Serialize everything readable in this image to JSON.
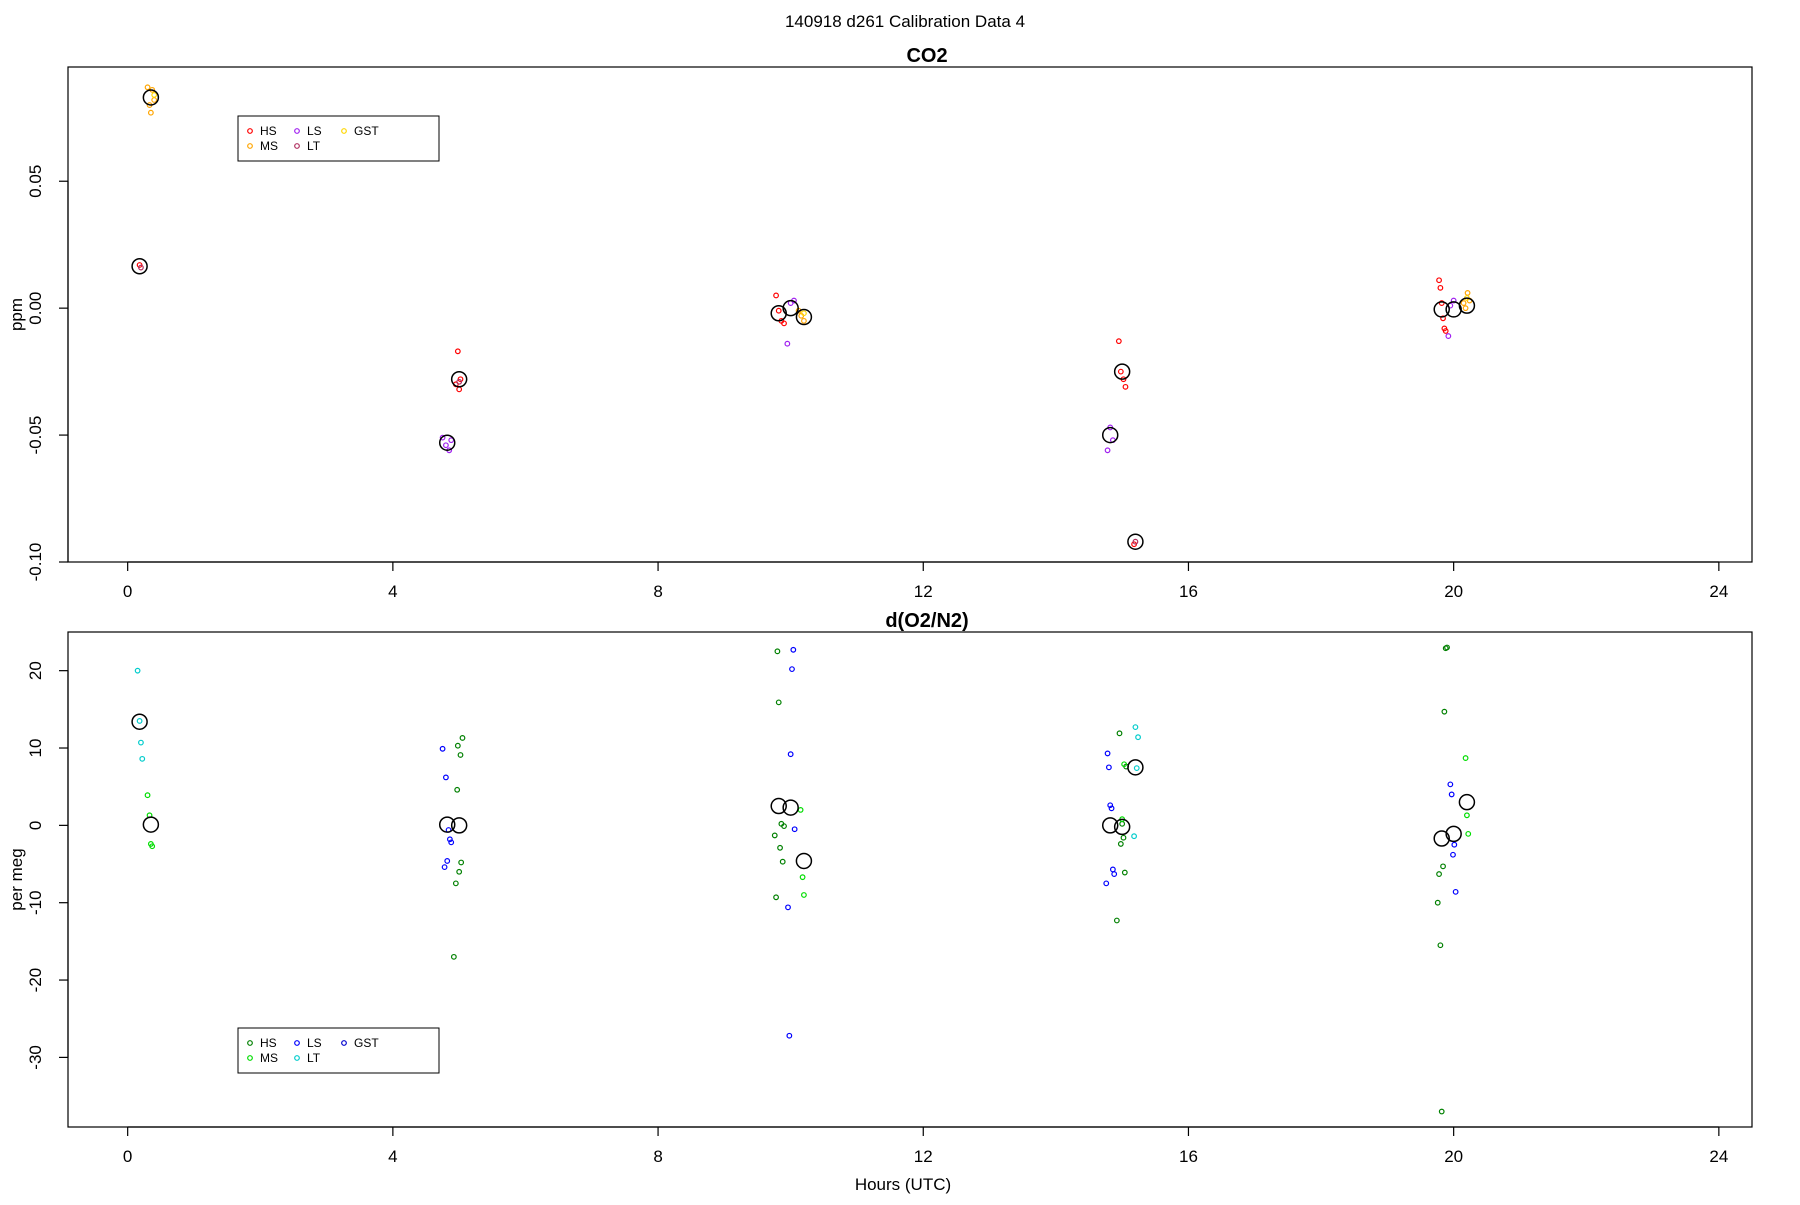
{
  "figure": {
    "title": "140918   d261   Calibration Data 4"
  },
  "chart_data": [
    {
      "type": "scatter",
      "title": "CO2",
      "xlabel": "",
      "ylabel": "ppm",
      "xlim": [
        -0.9,
        24.5
      ],
      "ylim": [
        -0.1,
        0.095
      ],
      "xticks": [
        0,
        4,
        8,
        12,
        16,
        20,
        24
      ],
      "yticks": [
        -0.1,
        -0.05,
        0.0,
        0.05
      ],
      "ytick_labels": [
        "-0.10",
        "-0.05",
        "0.00",
        "0.05"
      ],
      "grid": false,
      "legend": {
        "position": "top-left",
        "columns": 3,
        "symbol": "circle"
      },
      "series": [
        {
          "name": "HS",
          "color": "#ff0000",
          "points": [
            [
              0.18,
              0.017
            ],
            [
              4.98,
              -0.017
            ],
            [
              4.95,
              -0.03
            ],
            [
              5.0,
              -0.032
            ],
            [
              5.02,
              -0.028
            ],
            [
              9.78,
              0.005
            ],
            [
              9.82,
              -0.001
            ],
            [
              9.86,
              -0.005
            ],
            [
              9.9,
              -0.006
            ],
            [
              14.95,
              -0.013
            ],
            [
              14.98,
              -0.025
            ],
            [
              15.02,
              -0.028
            ],
            [
              15.05,
              -0.031
            ],
            [
              15.18,
              -0.093
            ],
            [
              19.78,
              0.011
            ],
            [
              19.8,
              0.008
            ],
            [
              19.82,
              0.002
            ],
            [
              19.84,
              -0.004
            ],
            [
              19.86,
              -0.008
            ],
            [
              19.88,
              -0.009
            ]
          ]
        },
        {
          "name": "MS",
          "color": "#ffa500",
          "points": [
            [
              0.3,
              0.087
            ],
            [
              0.33,
              0.08
            ],
            [
              0.35,
              0.077
            ],
            [
              0.37,
              0.086
            ],
            [
              0.4,
              0.082
            ],
            [
              10.12,
              -0.001
            ],
            [
              10.16,
              -0.003
            ],
            [
              10.2,
              -0.005
            ],
            [
              20.15,
              0.002
            ],
            [
              20.18,
              0.0
            ],
            [
              20.21,
              0.006
            ],
            [
              20.24,
              0.003
            ]
          ]
        },
        {
          "name": "LS",
          "color": "#a020f0",
          "points": [
            [
              4.75,
              -0.051
            ],
            [
              4.8,
              -0.054
            ],
            [
              4.85,
              -0.056
            ],
            [
              4.88,
              -0.052
            ],
            [
              9.95,
              -0.014
            ],
            [
              10.0,
              0.002
            ],
            [
              10.05,
              0.003
            ],
            [
              14.78,
              -0.056
            ],
            [
              14.82,
              -0.047
            ],
            [
              14.86,
              -0.052
            ],
            [
              19.95,
              0.001
            ],
            [
              20.0,
              0.003
            ],
            [
              19.92,
              -0.011
            ]
          ]
        },
        {
          "name": "LT",
          "color": "#b03060",
          "points": [
            [
              0.2,
              0.016
            ],
            [
              5.0,
              -0.029
            ],
            [
              15.2,
              -0.092
            ]
          ]
        },
        {
          "name": "GST",
          "color": "#ffd700",
          "points": [
            [
              0.4,
              0.084
            ],
            [
              10.2,
              -0.002
            ],
            [
              20.2,
              0.004
            ]
          ]
        },
        {
          "name": "",
          "color": "#000000",
          "marker": "large-open-circle",
          "points": [
            [
              0.18,
              0.0165
            ],
            [
              0.35,
              0.083
            ],
            [
              4.82,
              -0.053
            ],
            [
              5.0,
              -0.028
            ],
            [
              9.82,
              -0.002
            ],
            [
              10.0,
              0.0
            ],
            [
              10.2,
              -0.0035
            ],
            [
              14.82,
              -0.05
            ],
            [
              15.0,
              -0.025
            ],
            [
              15.2,
              -0.092
            ],
            [
              19.82,
              -0.0005
            ],
            [
              20.0,
              -0.0005
            ],
            [
              20.2,
              0.001
            ]
          ]
        }
      ]
    },
    {
      "type": "scatter",
      "title": "d(O2/N2)",
      "xlabel": "Hours (UTC)",
      "ylabel": "per meg",
      "xlim": [
        -0.9,
        24.5
      ],
      "ylim": [
        -39.0,
        25.0
      ],
      "xticks": [
        0,
        4,
        8,
        12,
        16,
        20,
        24
      ],
      "yticks": [
        -30,
        -20,
        -10,
        0,
        10,
        20
      ],
      "ytick_labels": [
        "-30",
        "-20",
        "-10",
        "0",
        "10",
        "20"
      ],
      "grid": false,
      "legend": {
        "position": "bottom-left",
        "columns": 3,
        "symbol": "circle"
      },
      "series": [
        {
          "name": "HS",
          "color": "#008000",
          "points": [
            [
              4.92,
              -17.0
            ],
            [
              4.95,
              -7.5
            ],
            [
              4.97,
              4.6
            ],
            [
              4.98,
              10.3
            ],
            [
              5.0,
              -6.0
            ],
            [
              5.02,
              9.1
            ],
            [
              5.03,
              -4.8
            ],
            [
              5.05,
              11.3
            ],
            [
              9.78,
              -9.3
            ],
            [
              9.8,
              22.5
            ],
            [
              9.82,
              15.9
            ],
            [
              9.84,
              -2.9
            ],
            [
              9.86,
              0.2
            ],
            [
              9.88,
              -4.7
            ],
            [
              9.9,
              -0.1
            ],
            [
              9.76,
              -1.3
            ],
            [
              14.92,
              -12.3
            ],
            [
              14.96,
              11.9
            ],
            [
              14.98,
              -2.4
            ],
            [
              15.0,
              0.2
            ],
            [
              15.02,
              -1.6
            ],
            [
              15.04,
              -6.1
            ],
            [
              15.06,
              7.6
            ],
            [
              19.78,
              -6.3
            ],
            [
              19.8,
              -15.5
            ],
            [
              19.82,
              -37.0
            ],
            [
              19.84,
              -5.3
            ],
            [
              19.86,
              14.7
            ],
            [
              19.88,
              22.9
            ],
            [
              19.9,
              23.0
            ],
            [
              19.76,
              -10.0
            ]
          ]
        },
        {
          "name": "MS",
          "color": "#00dd00",
          "points": [
            [
              0.3,
              3.9
            ],
            [
              0.33,
              1.3
            ],
            [
              0.35,
              -2.4
            ],
            [
              0.37,
              -2.7
            ],
            [
              10.15,
              2.0
            ],
            [
              10.18,
              -6.7
            ],
            [
              10.2,
              -9.0
            ],
            [
              15.0,
              0.8
            ],
            [
              15.03,
              7.9
            ],
            [
              20.18,
              8.7
            ],
            [
              20.2,
              1.3
            ],
            [
              20.22,
              -1.1
            ]
          ]
        },
        {
          "name": "LS",
          "color": "#0000ff",
          "points": [
            [
              4.75,
              9.9
            ],
            [
              4.78,
              -5.4
            ],
            [
              4.8,
              6.2
            ],
            [
              4.82,
              -4.6
            ],
            [
              4.84,
              -0.6
            ],
            [
              4.86,
              -1.8
            ],
            [
              4.88,
              -2.2
            ],
            [
              9.96,
              -10.6
            ],
            [
              9.98,
              -27.2
            ],
            [
              10.0,
              9.2
            ],
            [
              10.02,
              20.2
            ],
            [
              10.04,
              22.7
            ],
            [
              10.06,
              -0.5
            ],
            [
              14.76,
              -7.5
            ],
            [
              14.78,
              9.3
            ],
            [
              14.8,
              7.5
            ],
            [
              14.82,
              2.6
            ],
            [
              14.84,
              2.2
            ],
            [
              14.86,
              -5.7
            ],
            [
              14.88,
              -6.3
            ],
            [
              19.95,
              5.3
            ],
            [
              19.97,
              4.0
            ],
            [
              19.99,
              -3.8
            ],
            [
              20.01,
              -2.5
            ],
            [
              20.03,
              -8.6
            ]
          ]
        },
        {
          "name": "LT",
          "color": "#00cccc",
          "points": [
            [
              0.15,
              20.0
            ],
            [
              0.18,
              13.5
            ],
            [
              0.2,
              10.7
            ],
            [
              0.22,
              8.6
            ],
            [
              15.2,
              12.7
            ],
            [
              15.22,
              7.4
            ],
            [
              15.24,
              11.4
            ],
            [
              15.18,
              -1.4
            ]
          ]
        },
        {
          "name": "GST",
          "color": "#0000cd",
          "points": []
        },
        {
          "name": "",
          "color": "#000000",
          "marker": "large-open-circle",
          "points": [
            [
              0.18,
              13.4
            ],
            [
              0.35,
              0.1
            ],
            [
              4.82,
              0.1
            ],
            [
              5.0,
              0.0
            ],
            [
              9.82,
              2.5
            ],
            [
              10.0,
              2.3
            ],
            [
              10.2,
              -4.6
            ],
            [
              14.82,
              0.0
            ],
            [
              15.0,
              -0.2
            ],
            [
              15.2,
              7.5
            ],
            [
              19.82,
              -1.7
            ],
            [
              20.0,
              -1.1
            ],
            [
              20.2,
              3.0
            ]
          ]
        }
      ]
    }
  ]
}
